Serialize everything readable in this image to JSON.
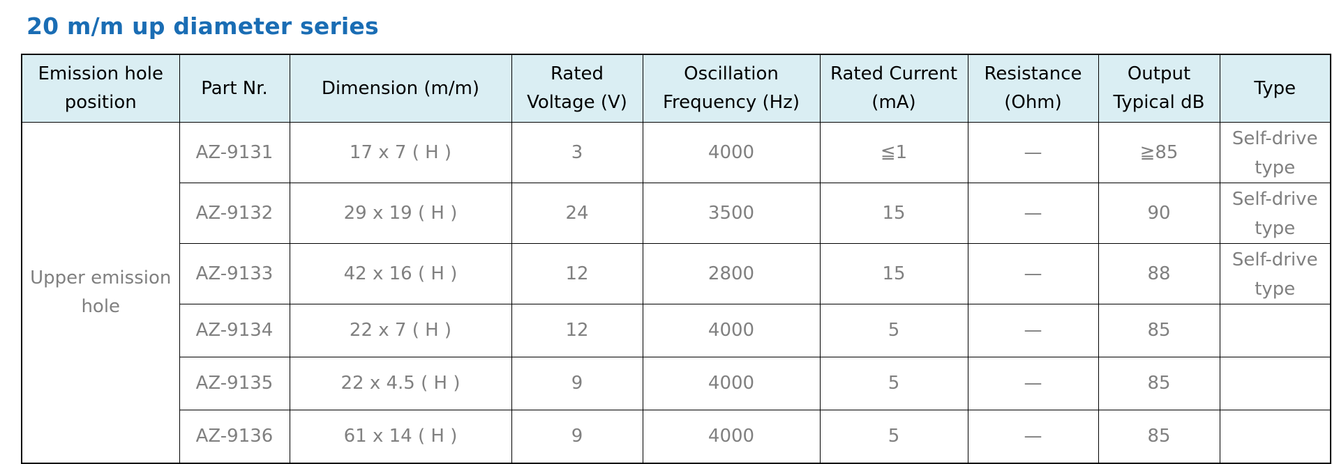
{
  "title": "20 m/m up diameter series",
  "table": {
    "header": [
      "Emission hole position",
      "Part Nr.",
      "Dimension (m/m)",
      "Rated Voltage (V)",
      "Oscillation Frequency (Hz)",
      "Rated Current (mA)",
      "Resistance (Ohm)",
      "Output Typical dB",
      "Type"
    ],
    "group": "Upper emission hole",
    "rows": [
      [
        "AZ-9131",
        "17 x 7 ( H )",
        "3",
        "4000",
        "≦1",
        "—",
        "≧85",
        "Self-drive type"
      ],
      [
        "AZ-9132",
        "29 x 19 ( H )",
        "24",
        "3500",
        "15",
        "—",
        "90",
        "Self-drive type"
      ],
      [
        "AZ-9133",
        "42 x 16 ( H )",
        "12",
        "2800",
        "15",
        "—",
        "88",
        "Self-drive type"
      ],
      [
        "AZ-9134",
        "22 x 7 ( H )",
        "12",
        "4000",
        "5",
        "—",
        "85"
      ],
      [
        "AZ-9135",
        "22 x 4.5 ( H )",
        "9",
        "4000",
        "5",
        "—",
        "85"
      ],
      [
        "AZ-9136",
        "61 x 14 ( H )",
        "9",
        "4000",
        "5",
        "—",
        "85"
      ]
    ]
  }
}
